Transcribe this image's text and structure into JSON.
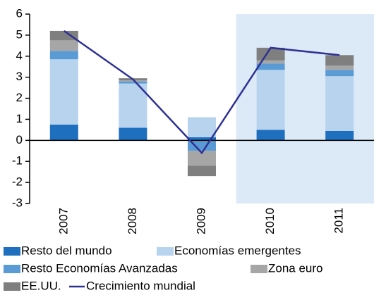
{
  "chart_data": {
    "type": "bar",
    "stacked": true,
    "categories": [
      "2007",
      "2008",
      "2009",
      "2010",
      "2011"
    ],
    "ylim": [
      -3,
      6
    ],
    "yticks": [
      -3,
      -2,
      -1,
      0,
      1,
      2,
      3,
      4,
      5,
      6
    ],
    "shade_start_index": 3,
    "shade_color": "#dce9f7",
    "series": [
      {
        "name": "Resto del mundo",
        "color": "#1f6fbf",
        "values": [
          0.75,
          0.6,
          0.15,
          0.5,
          0.45
        ]
      },
      {
        "name": "Economías emergentes",
        "color": "#b8d3ee",
        "values": [
          3.1,
          2.1,
          0.95,
          2.85,
          2.6
        ]
      },
      {
        "name": "Resto Economías Avanzadas",
        "color": "#5b9bd5",
        "values": [
          0.4,
          0.1,
          -0.5,
          0.3,
          0.3
        ]
      },
      {
        "name": "Zona euro",
        "color": "#a6a6a6",
        "values": [
          0.5,
          0.05,
          -0.7,
          0.15,
          0.2
        ]
      },
      {
        "name": "EE.UU.",
        "color": "#7f7f7f",
        "values": [
          0.45,
          0.1,
          -0.5,
          0.6,
          0.5
        ]
      },
      {
        "name": "Crecimiento mundial",
        "color": "#2e3192",
        "type": "line",
        "values": [
          5.2,
          2.9,
          -0.6,
          4.4,
          4.05
        ]
      }
    ]
  }
}
